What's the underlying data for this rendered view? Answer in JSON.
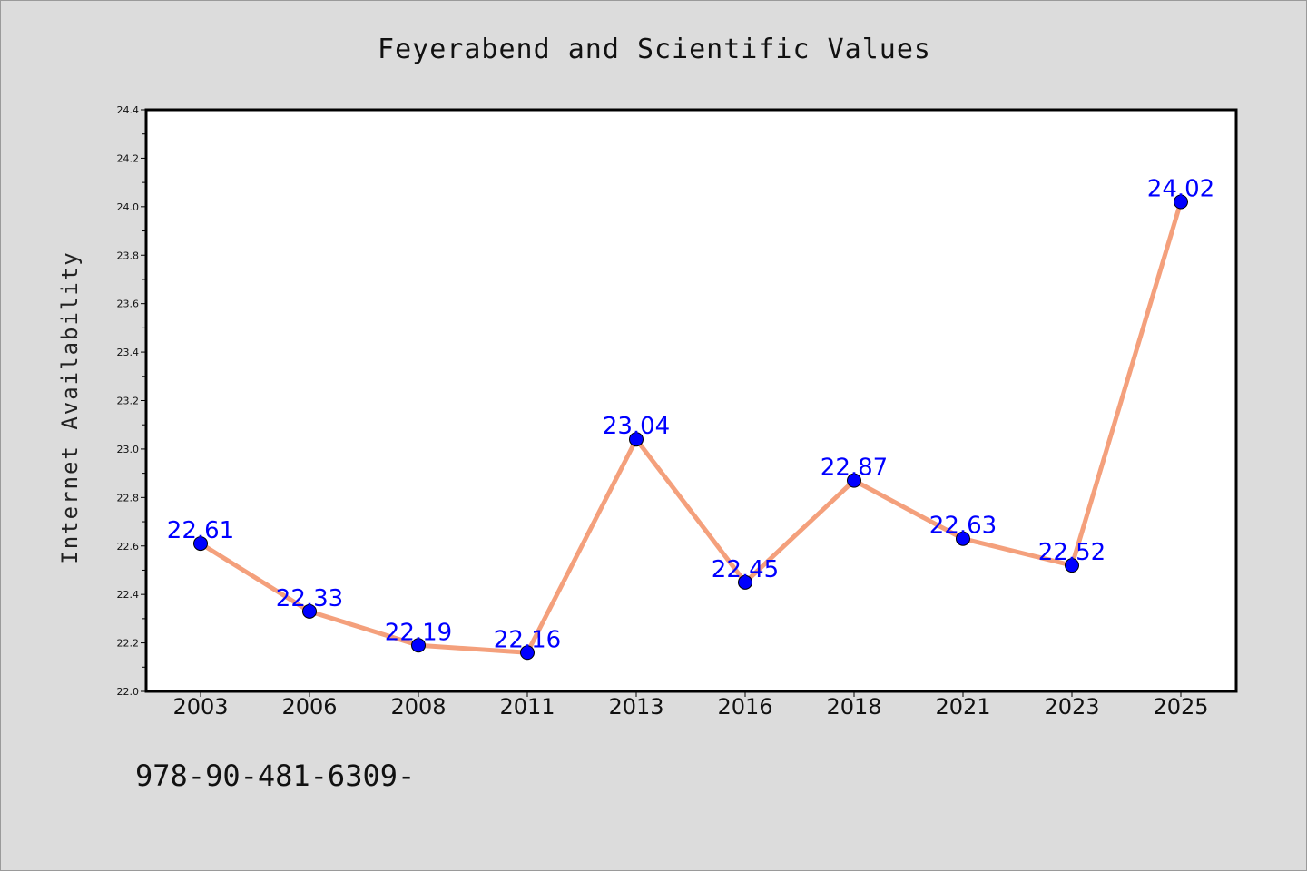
{
  "chart_data": {
    "type": "line",
    "title": "Feyerabend and Scientific Values",
    "xlabel": "",
    "ylabel": "Internet Availability",
    "categories": [
      "2003",
      "2006",
      "2008",
      "2011",
      "2013",
      "2016",
      "2018",
      "2021",
      "2023",
      "2025"
    ],
    "series": [
      {
        "values": [
          22.61,
          22.33,
          22.19,
          22.16,
          23.04,
          22.45,
          22.87,
          22.63,
          22.52,
          24.02
        ]
      }
    ],
    "data_labels": [
      "22.61",
      "22.33",
      "22.19",
      "22.16",
      "23.04",
      "22.45",
      "22.87",
      "22.63",
      "22.52",
      "24.02"
    ],
    "ylim": [
      22.0,
      24.4
    ],
    "y_ticks": [
      "22.0",
      "22.2",
      "22.4",
      "22.6",
      "22.8",
      "23.0",
      "23.2",
      "23.4",
      "23.6",
      "23.8",
      "24.0",
      "24.2",
      "24.4"
    ],
    "grid": false,
    "legend": "none",
    "colors": {
      "line": "#f4a07c",
      "marker": "#0000ff",
      "data_label": "#0000ff",
      "background": "#dcdcdc",
      "plot_background": "#ffffff"
    }
  },
  "footer": {
    "text": "978-90-481-6309-"
  }
}
